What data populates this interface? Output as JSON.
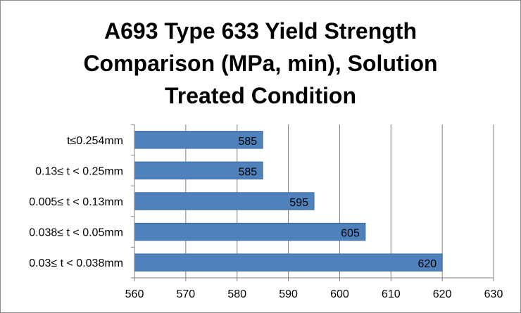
{
  "chart_data": {
    "type": "bar",
    "orientation": "horizontal",
    "title_lines": [
      "A693 Type 633 Yield Strength",
      "Comparison (MPa, min), Solution",
      "Treated Condition"
    ],
    "categories": [
      "t≤0.254mm",
      "0.13≤ t < 0.25mm",
      "0.005≤ t < 0.13mm",
      "0.038≤ t < 0.05mm",
      "0.03≤ t < 0.038mm"
    ],
    "values": [
      585,
      585,
      595,
      605,
      620
    ],
    "xlim": [
      560,
      630
    ],
    "xticks": [
      560,
      570,
      580,
      590,
      600,
      610,
      620,
      630
    ],
    "xlabel": "",
    "ylabel": "",
    "grid": "vertical",
    "legend": "none",
    "data_labels": true,
    "colors": {
      "bar": "#4f81bd",
      "bar_edge": "#3b6aa0",
      "grid": "#808080"
    }
  }
}
